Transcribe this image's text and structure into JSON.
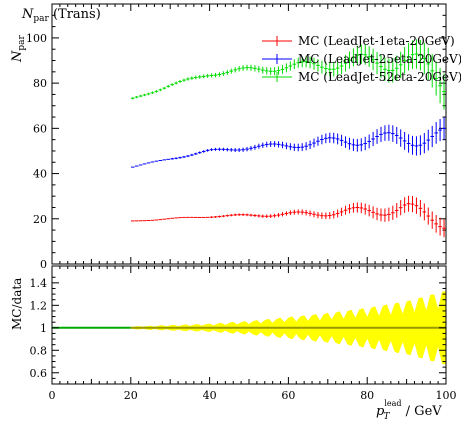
{
  "chart_data": [
    {
      "type": "scatter",
      "title": "N_par (Trans)",
      "title_main": "N",
      "title_sub": "par",
      "title_suffix": "(Trans)",
      "ylabel": "N_par",
      "ylabel_main": "N",
      "ylabel_sub": "par",
      "xlim": [
        0,
        100
      ],
      "ylim": [
        0,
        115
      ],
      "yticks": [
        0,
        20,
        40,
        60,
        80,
        100
      ],
      "legend_placement": "top-right",
      "series": [
        {
          "name": "MC (LeadJet-1eta-20GeV)",
          "color": "#ff0000",
          "x": [
            20.5,
            30,
            40,
            50,
            60,
            70,
            80,
            90,
            99.5
          ],
          "y": [
            19,
            20,
            21,
            21.5,
            22,
            22.5,
            23.5,
            24.5,
            19
          ],
          "yerr": [
            0.2,
            0.3,
            0.4,
            0.6,
            1.0,
            1.5,
            2.5,
            3.5,
            4.0
          ]
        },
        {
          "name": "MC (LeadJet-25eta-20GeV)",
          "color": "#0000ff",
          "x": [
            20.5,
            30,
            40,
            50,
            60,
            70,
            80,
            90,
            99.5
          ],
          "y": [
            43,
            46.5,
            50,
            51.5,
            52.5,
            54,
            55,
            55.5,
            56
          ],
          "yerr": [
            0.3,
            0.4,
            0.6,
            1.0,
            1.5,
            2.2,
            3.0,
            4.0,
            5.0
          ]
        },
        {
          "name": "MC (LeadJet-52eta-20GeV)",
          "color": "#00dd00",
          "x": [
            20.5,
            30,
            40,
            50,
            60,
            70,
            80,
            90,
            99.5
          ],
          "y": [
            73,
            79,
            84,
            86,
            87,
            88.5,
            89.5,
            90,
            82
          ],
          "yerr": [
            0.5,
            0.6,
            0.9,
            1.3,
            2.0,
            3.0,
            4.5,
            6.0,
            8.0
          ]
        }
      ]
    },
    {
      "type": "area",
      "ylabel": "MC/data",
      "xlabel": "p_T^lead / GeV",
      "xlabel_main": "p",
      "xlabel_sub": "T",
      "xlabel_sup": "lead",
      "xlabel_unit": "/ GeV",
      "xlim": [
        0,
        100
      ],
      "ylim": [
        0.5,
        1.55
      ],
      "yticks": [
        0.6,
        0.8,
        1,
        1.2,
        1.4
      ],
      "xticks": [
        0,
        20,
        40,
        60,
        80,
        100
      ],
      "reference_value": 1,
      "band": {
        "color": "#ffff00",
        "x": [
          20,
          30,
          40,
          50,
          60,
          70,
          80,
          90,
          100
        ],
        "half_width": [
          0.01,
          0.02,
          0.03,
          0.05,
          0.08,
          0.11,
          0.15,
          0.2,
          0.28
        ]
      },
      "line_colors": [
        "#00aa00",
        "#999900"
      ]
    }
  ]
}
